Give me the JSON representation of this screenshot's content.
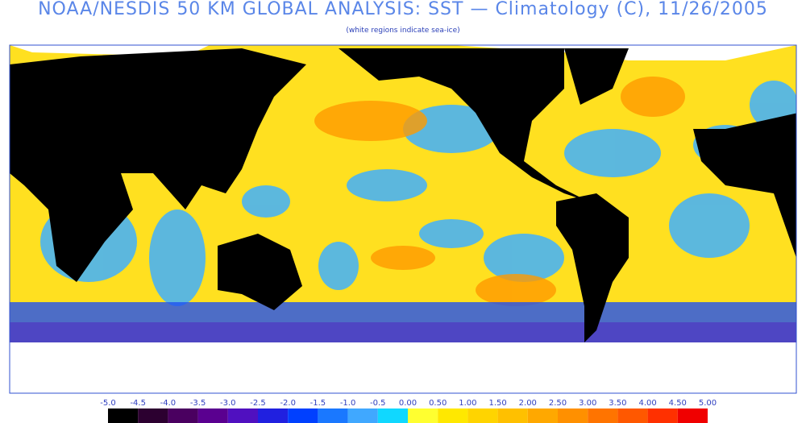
{
  "header": {
    "title": "NOAA/NESDIS 50 KM GLOBAL ANALYSIS: SST — Climatology (C), 11/26/2005",
    "subtitle": "(white regions indicate sea-ice)"
  },
  "colorbar": {
    "labels": [
      "-5.0",
      "-4.5",
      "-4.0",
      "-3.5",
      "-3.0",
      "-2.5",
      "-2.0",
      "-1.5",
      "-1.0",
      "-0.5",
      "0.00",
      "0.50",
      "1.00",
      "1.50",
      "2.00",
      "2.50",
      "3.00",
      "3.50",
      "4.00",
      "4.50",
      "5.00"
    ],
    "colors": [
      "#000000",
      "#2c0030",
      "#4a0060",
      "#5a0090",
      "#5010c0",
      "#2020e0",
      "#0040ff",
      "#1a78ff",
      "#40a8ff",
      "#10d8ff",
      "#ffff30",
      "#ffe800",
      "#ffd400",
      "#ffc000",
      "#ffa800",
      "#ff9000",
      "#ff7400",
      "#ff5800",
      "#ff3000",
      "#f00000"
    ]
  }
}
